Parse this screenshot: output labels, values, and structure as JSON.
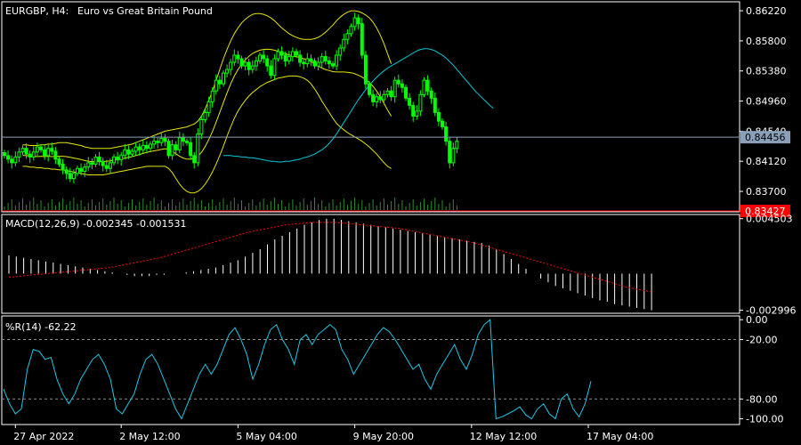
{
  "header": {
    "symbol": "EURGBP, H4:",
    "description": "Euro vs Great Britain Pound"
  },
  "colors": {
    "background": "#000000",
    "frame": "#ffffff",
    "bull_candle": "#ffffff",
    "bear_candle": "#00ff00",
    "bollinger": "#e6e600",
    "ma_cyan": "#00c8d8",
    "macd_hist": "#ffffff",
    "macd_signal": "#ff0000",
    "wpr_line": "#20c8e8",
    "bid_line": "#8a9fb8",
    "ask_line": "#ff0000"
  },
  "price_panel": {
    "ylim": [
      0.8344,
      0.8632
    ],
    "ticks": [
      "0.86220",
      "0.85800",
      "0.85380",
      "0.84960",
      "0.84540",
      "0.84120",
      "0.83700"
    ],
    "tick_values": [
      0.8622,
      0.858,
      0.8538,
      0.8496,
      0.8454,
      0.8412,
      0.837
    ],
    "bid": {
      "label": "0.84456",
      "value": 0.84456
    },
    "ask": {
      "label": "0.83427",
      "value": 0.83427
    }
  },
  "macd_panel": {
    "label": "MACD(12,26,9) -0.002345 -0.001531",
    "ylim": [
      -0.0031,
      0.0047
    ],
    "ticks": [
      "0.004503",
      "-0.002996"
    ],
    "tick_values": [
      0.004503,
      -0.002996
    ]
  },
  "wpr_panel": {
    "label": "%R(14) -62.22",
    "ylim": [
      -104,
      2
    ],
    "ticks": [
      "0.00",
      "-20.00",
      "-80.00",
      "-100.00"
    ],
    "tick_values": [
      0,
      -20,
      -80,
      -100
    ],
    "levels": [
      -20,
      -80
    ]
  },
  "time_axis": {
    "labels": [
      "27 Apr 2022",
      "2 May 12:00",
      "5 May 04:00",
      "9 May 20:00",
      "12 May 12:00",
      "17 May 04:00"
    ],
    "bar_index": [
      3,
      32,
      64,
      96,
      128,
      160
    ]
  },
  "chart_data": {
    "type": "candlestick",
    "closes": [
      0.842,
      0.8415,
      0.841,
      0.8418,
      0.8425,
      0.843,
      0.8422,
      0.8418,
      0.8425,
      0.8432,
      0.8428,
      0.842,
      0.843,
      0.8426,
      0.8415,
      0.8408,
      0.84,
      0.8395,
      0.8388,
      0.8395,
      0.8402,
      0.8398,
      0.8404,
      0.841,
      0.8408,
      0.8418,
      0.8412,
      0.8406,
      0.8402,
      0.841,
      0.8418,
      0.8414,
      0.842,
      0.8428,
      0.8422,
      0.8426,
      0.8432,
      0.8428,
      0.8434,
      0.843,
      0.8436,
      0.844,
      0.8438,
      0.8444,
      0.844,
      0.842,
      0.8435,
      0.8428,
      0.8445,
      0.844,
      0.8438,
      0.842,
      0.841,
      0.845,
      0.847,
      0.848,
      0.8495,
      0.851,
      0.8525,
      0.852,
      0.8535,
      0.854,
      0.855,
      0.856,
      0.8555,
      0.8545,
      0.855,
      0.854,
      0.8545,
      0.8552,
      0.856,
      0.8555,
      0.8545,
      0.8532,
      0.8555,
      0.8565,
      0.856,
      0.8552,
      0.8558,
      0.8565,
      0.856,
      0.855,
      0.8548,
      0.8555,
      0.8552,
      0.8545,
      0.855,
      0.8558,
      0.8552,
      0.8548,
      0.8545,
      0.856,
      0.857,
      0.8582,
      0.859,
      0.86,
      0.8612,
      0.8604,
      0.856,
      0.852,
      0.8505,
      0.8495,
      0.8502,
      0.8498,
      0.8505,
      0.851,
      0.8502,
      0.8525,
      0.852,
      0.8515,
      0.85,
      0.849,
      0.8475,
      0.8482,
      0.8505,
      0.8525,
      0.851,
      0.85,
      0.848,
      0.8468,
      0.846,
      0.844,
      0.841,
      0.843,
      0.844
    ],
    "bollinger_upper": [
      0.8435,
      0.8435,
      0.8434,
      0.8434,
      0.8434,
      0.8435,
      0.8435,
      0.8436,
      0.8436,
      0.8437,
      0.8438,
      0.8438,
      0.8438,
      0.8437,
      0.8436,
      0.8435,
      0.8434,
      0.8432,
      0.8431,
      0.843,
      0.843,
      0.843,
      0.843,
      0.843,
      0.843,
      0.8431,
      0.8432,
      0.8433,
      0.8434,
      0.8435,
      0.8436,
      0.8438,
      0.844,
      0.8442,
      0.8444,
      0.8446,
      0.8448,
      0.845,
      0.8452,
      0.8454,
      0.8455,
      0.8456,
      0.8457,
      0.8458,
      0.8459,
      0.846,
      0.8462,
      0.8464,
      0.8468,
      0.8475,
      0.8485,
      0.8497,
      0.851,
      0.8525,
      0.854,
      0.8555,
      0.8568,
      0.858,
      0.859,
      0.8598,
      0.8605,
      0.861,
      0.8614,
      0.8617,
      0.8618,
      0.8618,
      0.8617,
      0.8615,
      0.8612,
      0.8608,
      0.8603,
      0.8598,
      0.8594,
      0.859,
      0.8587,
      0.8585,
      0.8583,
      0.8582,
      0.8582,
      0.8582,
      0.8583,
      0.8585,
      0.8588,
      0.8592,
      0.8597,
      0.8602,
      0.8608,
      0.8613,
      0.8617,
      0.862,
      0.8622,
      0.8622,
      0.8621,
      0.8619,
      0.8616,
      0.8612,
      0.8606,
      0.8598,
      0.8588,
      0.8576,
      0.8562,
      0.8548
    ],
    "bollinger_lower": [
      0.8405,
      0.8405,
      0.8404,
      0.8404,
      0.8403,
      0.8403,
      0.8402,
      0.8402,
      0.8401,
      0.8401,
      0.84,
      0.84,
      0.8399,
      0.8398,
      0.8397,
      0.8396,
      0.8395,
      0.8394,
      0.8393,
      0.8393,
      0.8393,
      0.8393,
      0.8393,
      0.8394,
      0.8395,
      0.8396,
      0.8397,
      0.8398,
      0.8399,
      0.84,
      0.8401,
      0.8402,
      0.8403,
      0.8404,
      0.8405,
      0.8405,
      0.8405,
      0.8405,
      0.8405,
      0.8405,
      0.8402,
      0.8396,
      0.8388,
      0.838,
      0.8374,
      0.837,
      0.8368,
      0.8368,
      0.837,
      0.8374,
      0.838,
      0.8388,
      0.8397,
      0.8408,
      0.842,
      0.8433,
      0.8447,
      0.846,
      0.8472,
      0.8482,
      0.849,
      0.8497,
      0.8503,
      0.8508,
      0.8512,
      0.8516,
      0.8519,
      0.8522,
      0.8524,
      0.8526,
      0.8528,
      0.8529,
      0.853,
      0.8531,
      0.8531,
      0.8531,
      0.853,
      0.8528,
      0.8525,
      0.852,
      0.8513,
      0.8505,
      0.8496,
      0.8488,
      0.848,
      0.8472,
      0.8465,
      0.846,
      0.8456,
      0.8452,
      0.8449,
      0.8446,
      0.8443,
      0.844,
      0.8436,
      0.8432,
      0.8427,
      0.8422,
      0.8416,
      0.841,
      0.8405,
      0.8402
    ],
    "moving_average": [
      0.842,
      0.842,
      0.842,
      0.8419,
      0.8419,
      0.8418,
      0.8418,
      0.8417,
      0.8417,
      0.8416,
      0.8415,
      0.8414,
      0.8413,
      0.8412,
      0.8412,
      0.8411,
      0.8411,
      0.8412,
      0.8412,
      0.8413,
      0.8414,
      0.8415,
      0.8417,
      0.8418,
      0.842,
      0.8422,
      0.8425,
      0.8428,
      0.8432,
      0.8437,
      0.8443,
      0.845,
      0.8458,
      0.8466,
      0.8474,
      0.8482,
      0.849,
      0.8498,
      0.8505,
      0.8512,
      0.8518,
      0.8524,
      0.8529,
      0.8534,
      0.8538,
      0.8542,
      0.8545,
      0.8548,
      0.8551,
      0.8554,
      0.8557,
      0.856,
      0.8563,
      0.8566,
      0.8568,
      0.8569,
      0.8569,
      0.8568,
      0.8566,
      0.8563,
      0.856,
      0.8556,
      0.8551,
      0.8546,
      0.854,
      0.8534,
      0.8528,
      0.8522,
      0.8516,
      0.851,
      0.8505,
      0.85,
      0.8495,
      0.849,
      0.8486
    ],
    "macd_hist": [
      0.0015,
      0.0014,
      0.0013,
      0.0012,
      0.0011,
      0.001,
      0.0009,
      0.0008,
      0.0007,
      0.0006,
      0.0005,
      0.0004,
      0.0003,
      0.0002,
      0.0001,
      0.0,
      -0.0001,
      -0.0002,
      -0.0002,
      -0.0002,
      -0.0001,
      -0.0001,
      0.0,
      0.0,
      0.0001,
      0.0002,
      0.0003,
      0.0004,
      0.0005,
      0.0007,
      0.0009,
      0.0011,
      0.0014,
      0.0017,
      0.002,
      0.0024,
      0.0028,
      0.0031,
      0.0034,
      0.0037,
      0.004,
      0.0042,
      0.0044,
      0.0045,
      0.0045,
      0.0044,
      0.0043,
      0.0042,
      0.0041,
      0.004,
      0.0039,
      0.0038,
      0.0037,
      0.0036,
      0.0035,
      0.0034,
      0.0033,
      0.0032,
      0.0031,
      0.003,
      0.0029,
      0.0028,
      0.0027,
      0.0026,
      0.0025,
      0.0023,
      0.002,
      0.0016,
      0.0012,
      0.0008,
      0.0004,
      0.0,
      -0.0004,
      -0.0007,
      -0.001,
      -0.0012,
      -0.0014,
      -0.0016,
      -0.0018,
      -0.002,
      -0.0022,
      -0.0023,
      -0.0025,
      -0.0026,
      -0.0027,
      -0.0028,
      -0.0029,
      -0.003
    ],
    "macd_signal": [
      -0.0003,
      -0.0002,
      -0.0001,
      0.0,
      0.0001,
      0.0002,
      0.0003,
      0.0004,
      0.0005,
      0.0007,
      0.0009,
      0.0011,
      0.0013,
      0.0016,
      0.0019,
      0.0022,
      0.0025,
      0.0028,
      0.0031,
      0.0034,
      0.0036,
      0.0038,
      0.004,
      0.0041,
      0.0042,
      0.0042,
      0.0042,
      0.0041,
      0.004,
      0.0039,
      0.0038,
      0.0037,
      0.0035,
      0.0033,
      0.0031,
      0.0029,
      0.0027,
      0.0025,
      0.0022,
      0.0019,
      0.0016,
      0.0013,
      0.001,
      0.0007,
      0.0004,
      0.0001,
      -0.0002,
      -0.0005,
      -0.0008,
      -0.0011,
      -0.0013,
      -0.0015
    ],
    "wpr": [
      -70,
      -85,
      -95,
      -90,
      -50,
      -30,
      -32,
      -40,
      -38,
      -60,
      -75,
      -85,
      -75,
      -60,
      -50,
      -40,
      -35,
      -45,
      -60,
      -90,
      -95,
      -85,
      -75,
      -55,
      -40,
      -35,
      -45,
      -60,
      -75,
      -90,
      -100,
      -85,
      -70,
      -55,
      -45,
      -55,
      -45,
      -30,
      -15,
      -8,
      -20,
      -35,
      -60,
      -45,
      -25,
      -10,
      -5,
      -20,
      -30,
      -45,
      -20,
      -15,
      -25,
      -15,
      -10,
      -5,
      -10,
      -30,
      -40,
      -55,
      -45,
      -35,
      -25,
      -15,
      -8,
      -12,
      -20,
      -30,
      -40,
      -50,
      -45,
      -60,
      -70,
      -55,
      -45,
      -35,
      -25,
      -40,
      -50,
      -35,
      -15,
      -5,
      0,
      -100,
      -98,
      -95,
      -92,
      -88,
      -96,
      -100,
      -90,
      -85,
      -95,
      -100,
      -80,
      -75,
      -90,
      -98,
      -85,
      -62
    ]
  }
}
